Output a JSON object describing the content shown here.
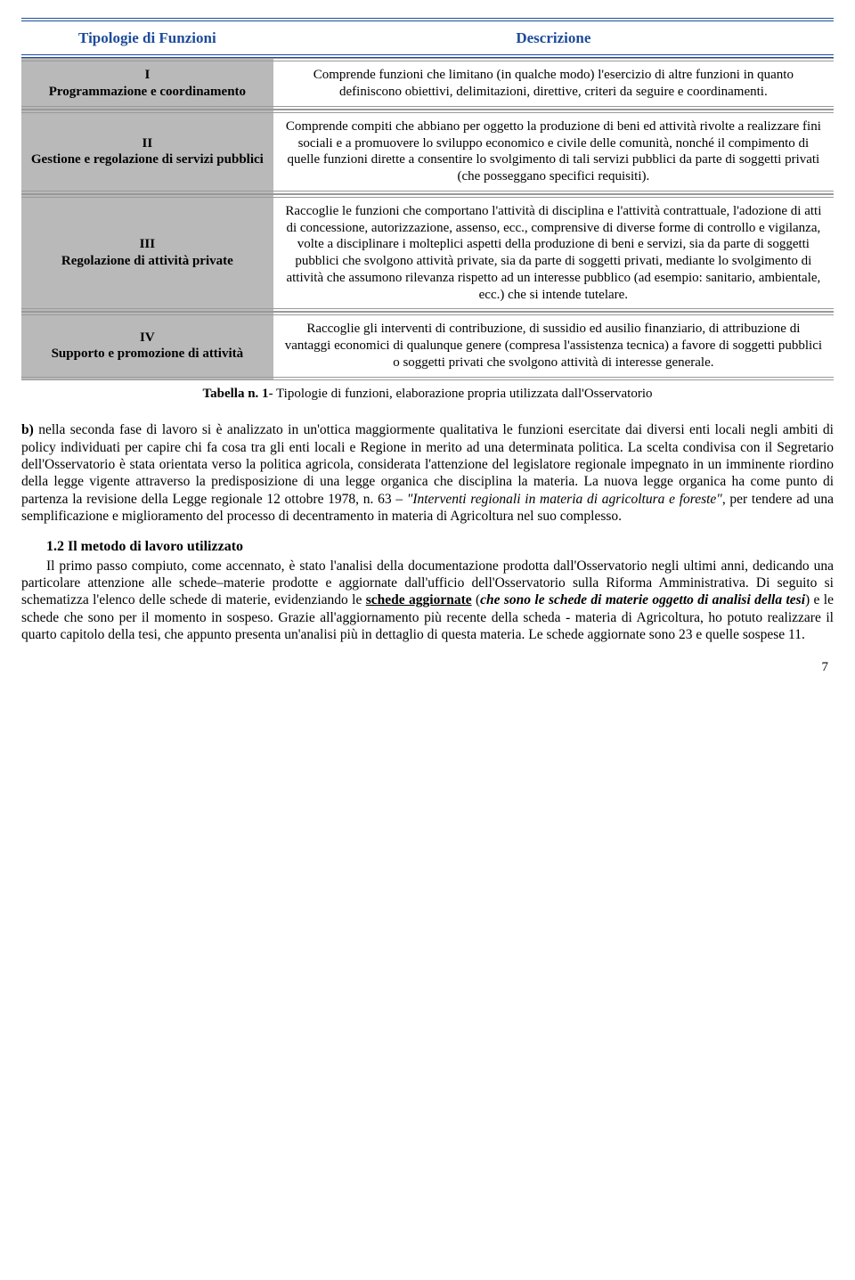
{
  "table": {
    "header_left": "Tipologie di Funzioni",
    "header_right": "Descrizione",
    "header_color": "#1e4b9a",
    "left_bg": "#b9b9b9",
    "rows": [
      {
        "type_num": "I",
        "type_label": "Programmazione e coordinamento",
        "desc": "Comprende funzioni che limitano (in qualche modo) l'esercizio di altre funzioni in quanto definiscono obiettivi, delimitazioni, direttive, criteri da seguire e coordinamenti."
      },
      {
        "type_num": "II",
        "type_label": "Gestione e regolazione di servizi pubblici",
        "desc": "Comprende compiti che abbiano per oggetto la produzione di beni ed attività rivolte a realizzare fini sociali e a promuovere lo sviluppo economico e civile delle comunità, nonché il compimento di quelle funzioni dirette a consentire lo svolgimento di tali servizi pubblici da parte di soggetti privati (che posseggano specifici requisiti)."
      },
      {
        "type_num": "III",
        "type_label": "Regolazione di attività private",
        "desc": "Raccoglie le funzioni che comportano l'attività di disciplina e l'attività contrattuale, l'adozione di atti di concessione, autorizzazione, assenso, ecc., comprensive di diverse forme di controllo e vigilanza, volte a disciplinare i molteplici aspetti della produzione di beni e servizi, sia da parte di soggetti pubblici che svolgono attività private, sia da parte di soggetti privati, mediante lo svolgimento di attività che assumono rilevanza rispetto ad un interesse pubblico (ad esempio: sanitario, ambientale, ecc.) che si intende tutelare."
      },
      {
        "type_num": "IV",
        "type_label": "Supporto e promozione di attività",
        "desc": "Raccoglie gli interventi di contribuzione, di sussidio ed ausilio finanziario, di attribuzione di vantaggi economici di qualunque genere (compresa l'assistenza tecnica) a favore di soggetti pubblici o soggetti privati che svolgono attività di interesse generale."
      }
    ],
    "caption_bold": "Tabella n. 1",
    "caption_rest": "- Tipologie di funzioni, elaborazione propria utilizzata dall'Osservatorio"
  },
  "para1": {
    "b_lead": "b) ",
    "t1": "nella seconda fase di lavoro si è analizzato in un'ottica maggiormente qualitativa le funzioni esercitate dai diversi enti locali negli ambiti di policy individuati per capire chi fa cosa tra gli enti locali e Regione in merito ad una determinata politica. La scelta condivisa con il Segretario dell'Osservatorio è stata orientata verso la politica agricola, considerata l'attenzione del legislatore regionale impegnato in un imminente riordino della legge vigente attraverso la predisposizione di una legge organica che disciplina la materia. La nuova legge organica ha come punto di partenza la revisione della Legge regionale 12 ottobre 1978, n. 63 – ",
    "i1": "\"Interventi regionali in materia di agricoltura e foreste\"",
    "t2": ", per tendere ad una semplificazione e miglioramento del processo di decentramento in materia di Agricoltura nel suo complesso."
  },
  "section_heading": "1.2 Il metodo di lavoro utilizzato",
  "para2": {
    "t1": "Il primo passo compiuto, come accennato, è stato l'analisi della documentazione prodotta dall'Osservatorio negli ultimi anni, dedicando una particolare attenzione alle schede–materie prodotte e aggiornate dall'ufficio dell'Osservatorio sulla Riforma Amministrativa. Di seguito si schematizza l'elenco delle schede di materie, evidenziando le ",
    "bu1": "schede aggiornate",
    "t2": " (",
    "bi1": "che sono le schede di materie oggetto di analisi della tesi",
    "t3": ") e le schede che sono per il momento in sospeso. Grazie all'aggiornamento più recente della scheda - materia di Agricoltura, ho potuto realizzare il quarto capitolo della tesi, che appunto presenta un'analisi più in dettaglio di questa materia. Le schede aggiornate sono 23 e quelle sospese 11."
  },
  "page_number": "7"
}
